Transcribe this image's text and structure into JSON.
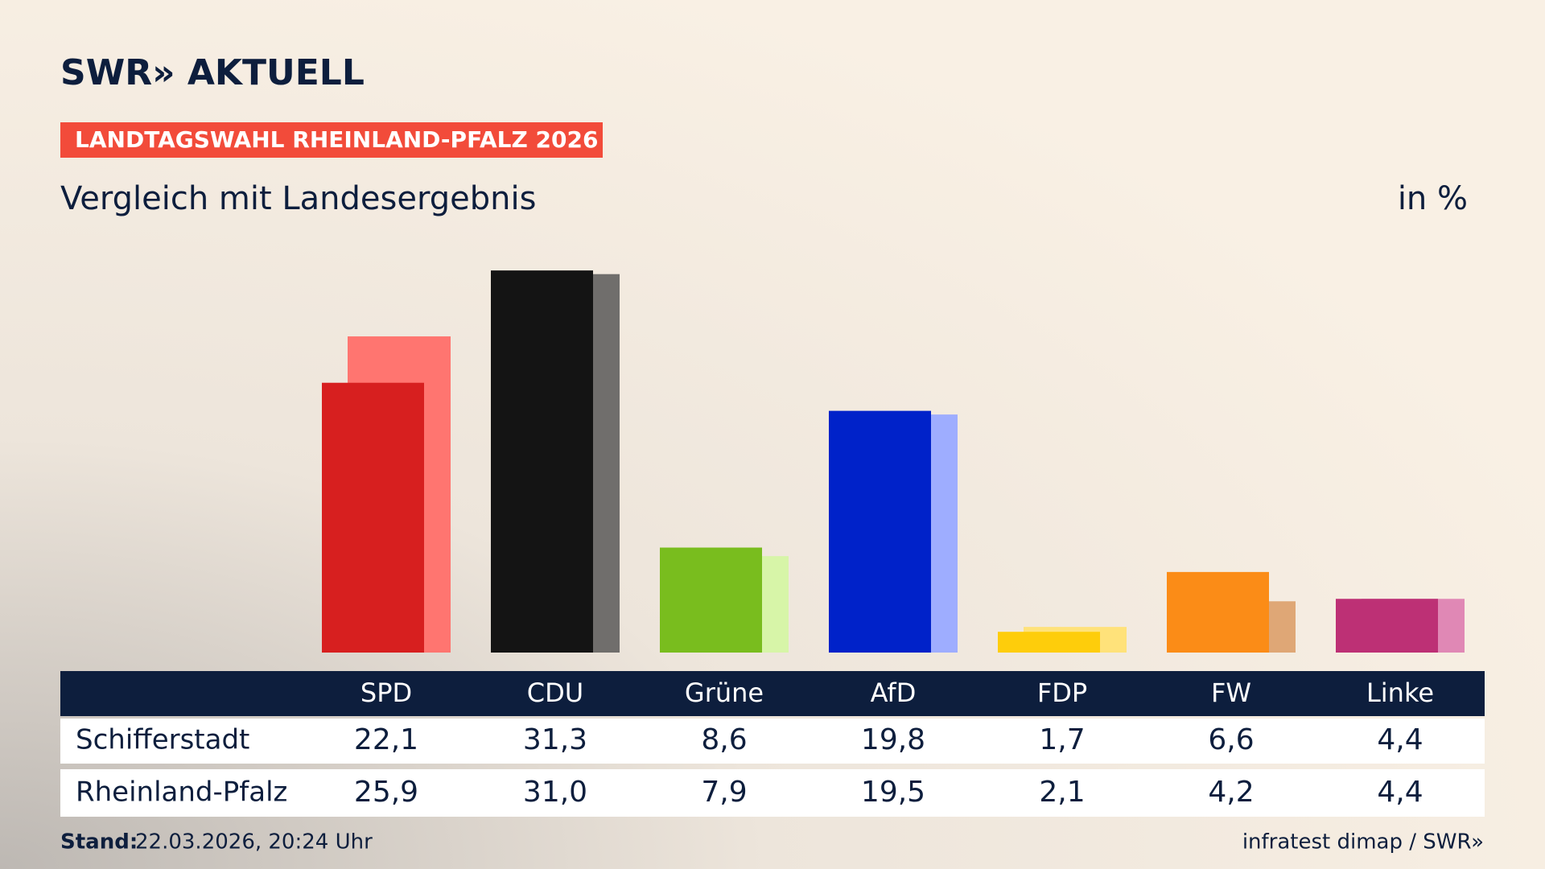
{
  "brand": "SWR» AKTUELL",
  "tag": "LANDTAGSWAHL RHEINLAND-PFALZ 2026",
  "footer": {
    "label": "Stand:",
    "date": "22.03.2026, 20:24 Uhr",
    "source": "infratest dimap / SWR»"
  },
  "chart_data": {
    "type": "bar",
    "title": "Vergleich mit Landesergebnis",
    "unit": "in %",
    "categories": [
      "SPD",
      "CDU",
      "Grüne",
      "AfD",
      "FDP",
      "FW",
      "Linke"
    ],
    "series": [
      {
        "name": "Schifferstadt",
        "values": [
          22.1,
          31.3,
          8.6,
          19.8,
          1.7,
          6.6,
          4.4
        ],
        "value_labels": [
          "22,1",
          "31,3",
          "8,6",
          "19,8",
          "1,7",
          "6,6",
          "4,4"
        ],
        "color": [
          "#d71f1f",
          "#141414",
          "#79bd1e",
          "#0022c9",
          "#fecd0b",
          "#fb8c17",
          "#bd3075"
        ]
      },
      {
        "name": "Rheinland-Pfalz",
        "values": [
          25.9,
          31.0,
          7.9,
          19.5,
          2.1,
          4.2,
          4.4
        ],
        "value_labels": [
          "25,9",
          "31,0",
          "7,9",
          "19,5",
          "2,1",
          "4,2",
          "4,4"
        ],
        "color": [
          "#ff7570",
          "#706e6c",
          "#d7f5a8",
          "#9eadff",
          "#ffe27a",
          "#dfa776",
          "#e088b5"
        ]
      }
    ],
    "ylim": [
      0,
      35
    ]
  }
}
